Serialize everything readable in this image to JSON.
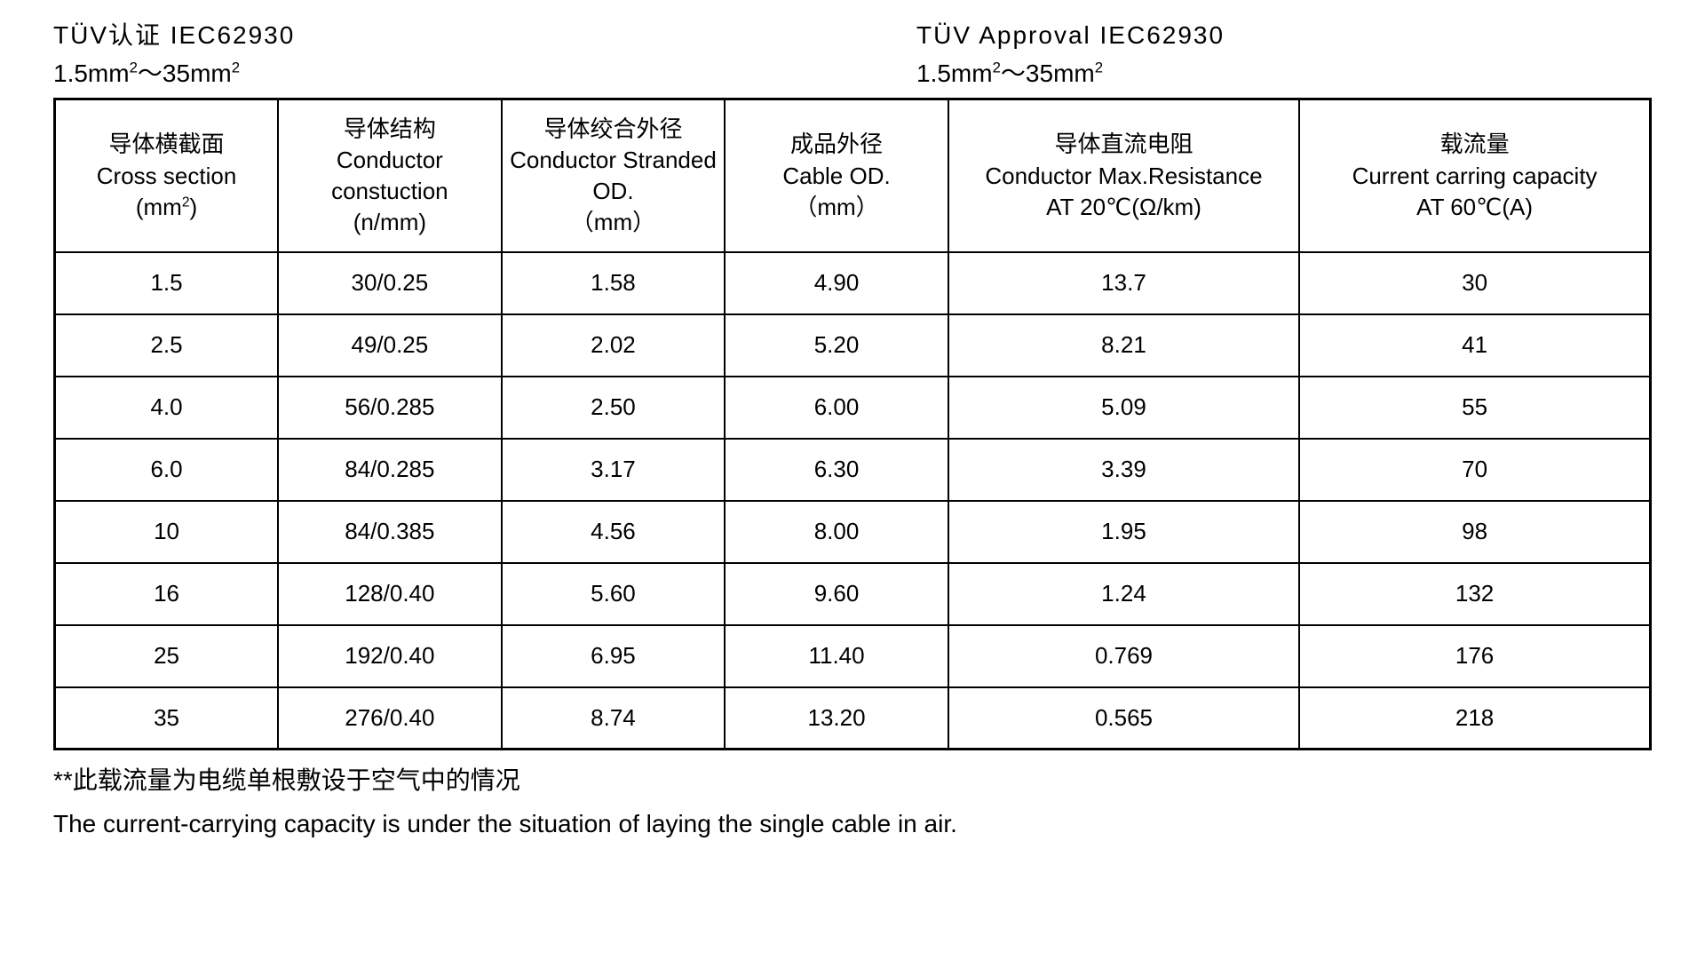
{
  "title": {
    "left_line1": "TÜV认证  IEC62930",
    "left_line2_html": "1.5mm<sup>2</sup>～35mm<sup>2</sup>",
    "right_line1": "TÜV Approval   IEC62930",
    "right_line2_html": "1.5mm<sup>2</sup>～35mm<sup>2</sup>"
  },
  "table": {
    "type": "table",
    "border_color": "#000000",
    "background_color": "#ffffff",
    "font_size": 26,
    "columns": [
      {
        "cn": "导体横截面",
        "en": "Cross section",
        "unit_html": "(mm<sup>2</sup>)",
        "width_pct": 14
      },
      {
        "cn": "导体结构",
        "en": "Conductor constuction",
        "unit_html": "(n/mm)",
        "width_pct": 14
      },
      {
        "cn": "导体绞合外径",
        "en": "Conductor Stranded OD.",
        "unit_html": "（mm）",
        "width_pct": 14
      },
      {
        "cn": "成品外径",
        "en": "Cable OD.",
        "unit_html": "（mm）",
        "width_pct": 14
      },
      {
        "cn": "导体直流电阻",
        "en": "Conductor Max.Resistance",
        "unit_html": "AT 20℃(Ω/km)",
        "width_pct": 22
      },
      {
        "cn": "载流量",
        "en": "Current carring capacity",
        "unit_html": "AT 60℃(A)",
        "width_pct": 22
      }
    ],
    "rows": [
      [
        "1.5",
        "30/0.25",
        "1.58",
        "4.90",
        "13.7",
        "30"
      ],
      [
        "2.5",
        "49/0.25",
        "2.02",
        "5.20",
        "8.21",
        "41"
      ],
      [
        "4.0",
        "56/0.285",
        "2.50",
        "6.00",
        "5.09",
        "55"
      ],
      [
        "6.0",
        "84/0.285",
        "3.17",
        "6.30",
        "3.39",
        "70"
      ],
      [
        "10",
        "84/0.385",
        "4.56",
        "8.00",
        "1.95",
        "98"
      ],
      [
        "16",
        "128/0.40",
        "5.60",
        "9.60",
        "1.24",
        "132"
      ],
      [
        "25",
        "192/0.40",
        "6.95",
        "11.40",
        "0.769",
        "176"
      ],
      [
        "35",
        "276/0.40",
        "8.74",
        "13.20",
        "0.565",
        "218"
      ]
    ]
  },
  "footnotes": {
    "line1": "**此载流量为电缆单根敷设于空气中的情况",
    "line2": "The current-carrying capacity is under the situation of laying the single cable in air."
  }
}
